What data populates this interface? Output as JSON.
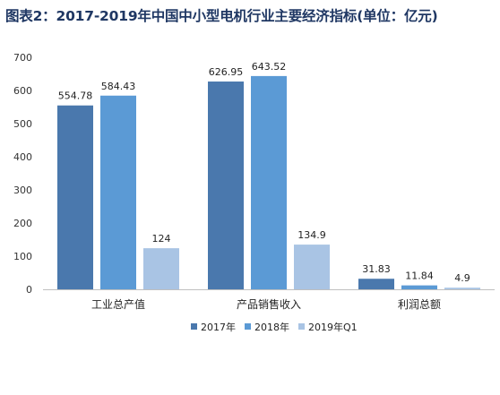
{
  "chart_data": {
    "type": "bar",
    "title": "图表2：2017-2019年中国中小型电机行业主要经济指标(单位：亿元)",
    "categories": [
      "工业总产值",
      "产品销售收入",
      "利润总额"
    ],
    "series": [
      {
        "name": "2017年",
        "values": [
          554.78,
          626.95,
          31.83
        ],
        "labels": [
          "554.78",
          "626.95",
          "31.83"
        ],
        "color": "#4a78ad"
      },
      {
        "name": "2018年",
        "values": [
          584.43,
          643.52,
          11.84
        ],
        "labels": [
          "584.43",
          "643.52",
          "11.84"
        ],
        "color": "#5b9ad5"
      },
      {
        "name": "2019年Q1",
        "values": [
          124,
          134.9,
          4.9
        ],
        "labels": [
          "124",
          "134.9",
          "4.9"
        ],
        "color": "#a9c4e4"
      }
    ],
    "ylim": [
      0,
      700
    ],
    "yticks": [
      "0",
      "100",
      "200",
      "300",
      "400",
      "500",
      "600",
      "700"
    ],
    "grid": false,
    "legend_position": "bottom"
  }
}
